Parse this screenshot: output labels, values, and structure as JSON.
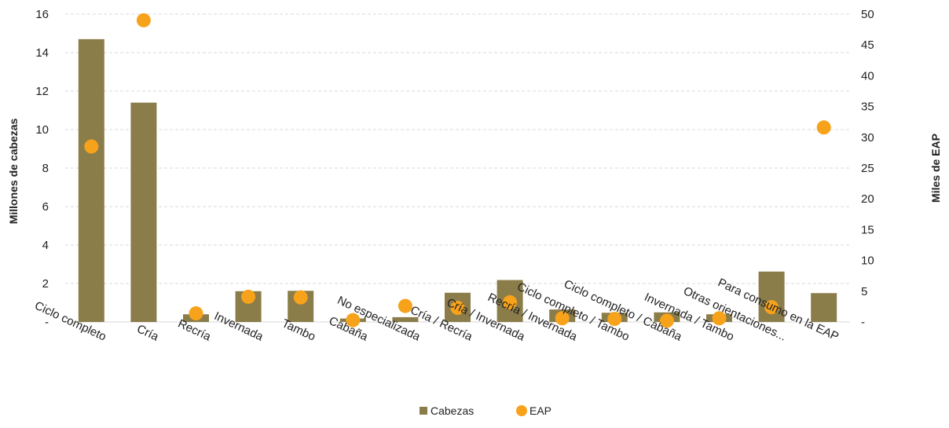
{
  "chart_data": {
    "type": "bar",
    "categories": [
      "Ciclo completo",
      "Cría",
      "Recría",
      "Invernada",
      "Tambo",
      "Cabaña",
      "No especializada",
      "Cría / Recría",
      "Cría / Invernada",
      "Recría / Invernada",
      "Ciclo completo / Tambo",
      "Ciclo completo / Cabaña",
      "Invernada / Tambo",
      "Otras orientaciones...",
      "Para consumo en la EAP"
    ],
    "series": [
      {
        "name": "Cabezas",
        "type": "bar",
        "axis": "left",
        "color": "#8B7D4A",
        "values": [
          14.7,
          11.4,
          0.4,
          1.6,
          1.62,
          0.18,
          0.25,
          1.52,
          2.18,
          0.65,
          0.48,
          0.5,
          0.4,
          2.62,
          1.5
        ]
      },
      {
        "name": "EAP",
        "type": "scatter",
        "axis": "right",
        "color": "#F7A21B",
        "values": [
          28.5,
          49.0,
          1.4,
          4.1,
          4.0,
          0.3,
          2.6,
          2.3,
          3.2,
          0.6,
          0.5,
          0.2,
          0.6,
          2.4,
          31.6
        ]
      }
    ],
    "ylabel": "Millones de cabezas",
    "ylabel_right": "Miles de EAP",
    "ylim": [
      0,
      16
    ],
    "ylim_right": [
      0,
      50
    ],
    "yticks": [
      "-",
      "2",
      "4",
      "6",
      "8",
      "10",
      "12",
      "14",
      "16"
    ],
    "yticks_right": [
      "-",
      "5",
      "10",
      "15",
      "20",
      "25",
      "30",
      "35",
      "40",
      "45",
      "50"
    ],
    "grid": true,
    "legend_position": "bottom"
  }
}
